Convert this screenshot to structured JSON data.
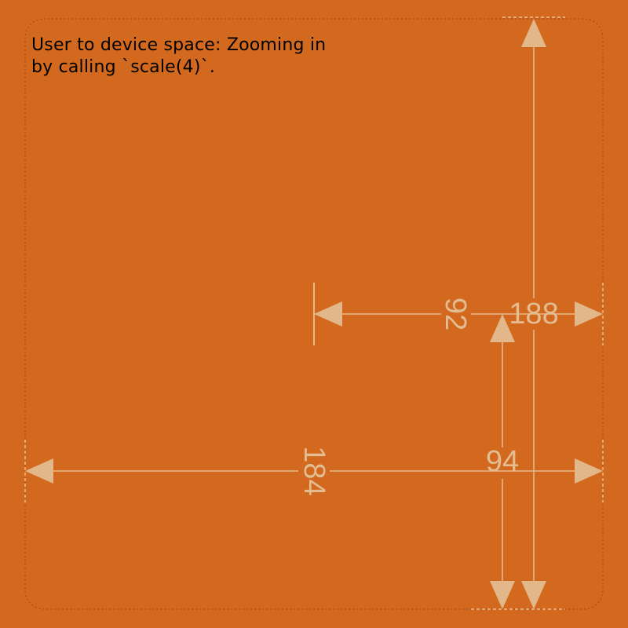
{
  "caption": {
    "line1": "User to device space: Zooming in",
    "line2": "by calling `scale(4)`."
  },
  "dimensions": {
    "d184": "184",
    "d92": "92",
    "d188": "188",
    "d94": "94"
  },
  "colors": {
    "background": "#d2691e",
    "dimension": "#e3b98d",
    "frame": "#a84a14",
    "text": "#000000"
  }
}
